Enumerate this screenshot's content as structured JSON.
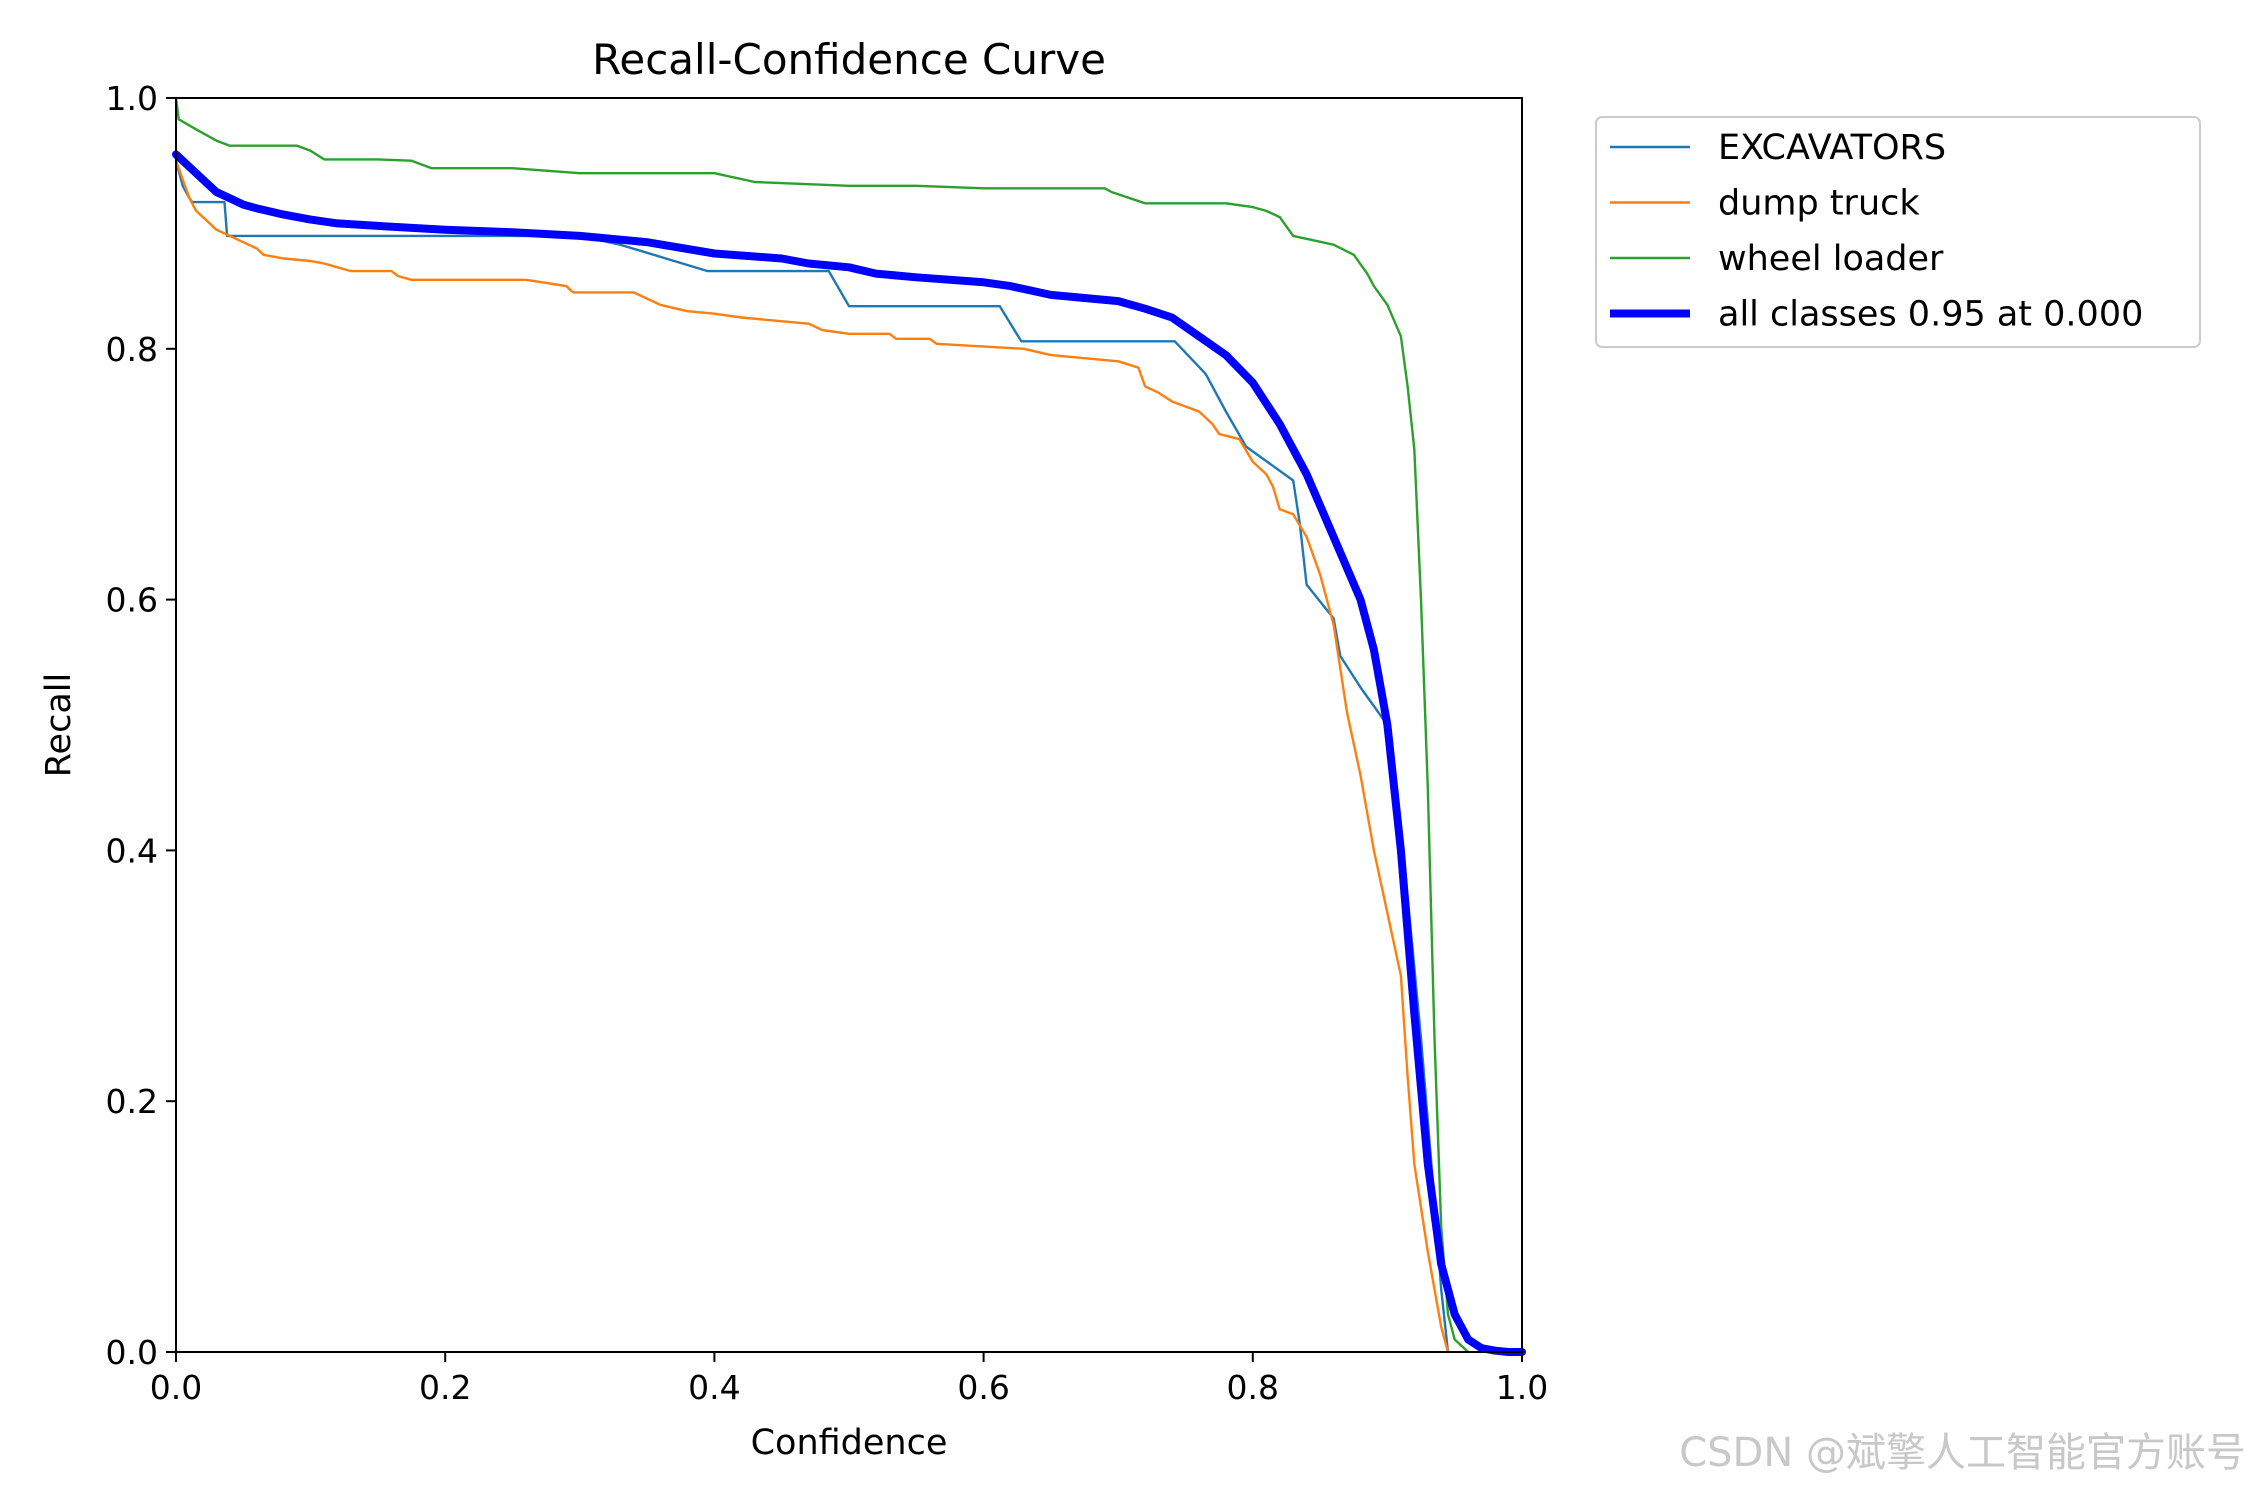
{
  "chart_data": {
    "type": "line",
    "title": "Recall-Confidence Curve",
    "xlabel": "Confidence",
    "ylabel": "Recall",
    "xlim": [
      0.0,
      1.0
    ],
    "ylim": [
      0.0,
      1.0
    ],
    "xticks": [
      "0.0",
      "0.2",
      "0.4",
      "0.6",
      "0.8",
      "1.0"
    ],
    "yticks": [
      "0.0",
      "0.2",
      "0.4",
      "0.6",
      "0.8",
      "1.0"
    ],
    "grid": false,
    "legend_position": "outside-top-right",
    "series": [
      {
        "name": "EXCAVATORS",
        "color": "#1f77b4",
        "x": [
          0.0,
          0.005,
          0.01,
          0.012,
          0.015,
          0.036,
          0.038,
          0.1,
          0.2,
          0.3,
          0.33,
          0.395,
          0.48,
          0.485,
          0.5,
          0.58,
          0.612,
          0.628,
          0.742,
          0.765,
          0.78,
          0.795,
          0.83,
          0.835,
          0.84,
          0.86,
          0.865,
          0.88,
          0.9,
          0.91,
          0.925,
          0.935,
          0.94,
          0.945
        ],
        "y": [
          0.95,
          0.93,
          0.92,
          0.917,
          0.917,
          0.917,
          0.89,
          0.89,
          0.89,
          0.89,
          0.883,
          0.862,
          0.862,
          0.862,
          0.834,
          0.834,
          0.834,
          0.806,
          0.806,
          0.78,
          0.75,
          0.722,
          0.695,
          0.66,
          0.612,
          0.585,
          0.555,
          0.53,
          0.5,
          0.42,
          0.25,
          0.12,
          0.05,
          0.0
        ]
      },
      {
        "name": "dump truck",
        "color": "#ff7f0e",
        "x": [
          0.0,
          0.005,
          0.01,
          0.015,
          0.02,
          0.025,
          0.03,
          0.04,
          0.05,
          0.06,
          0.065,
          0.08,
          0.1,
          0.11,
          0.12,
          0.13,
          0.16,
          0.165,
          0.175,
          0.2,
          0.26,
          0.29,
          0.295,
          0.3,
          0.34,
          0.35,
          0.36,
          0.38,
          0.4,
          0.42,
          0.47,
          0.48,
          0.5,
          0.53,
          0.535,
          0.56,
          0.565,
          0.63,
          0.65,
          0.7,
          0.715,
          0.72,
          0.73,
          0.74,
          0.76,
          0.77,
          0.775,
          0.79,
          0.8,
          0.81,
          0.815,
          0.82,
          0.83,
          0.84,
          0.85,
          0.86,
          0.865,
          0.87,
          0.88,
          0.89,
          0.9,
          0.91,
          0.915,
          0.92,
          0.93,
          0.94,
          0.945
        ],
        "y": [
          0.95,
          0.935,
          0.92,
          0.91,
          0.905,
          0.9,
          0.895,
          0.89,
          0.885,
          0.88,
          0.875,
          0.872,
          0.87,
          0.868,
          0.865,
          0.862,
          0.862,
          0.858,
          0.855,
          0.855,
          0.855,
          0.85,
          0.845,
          0.845,
          0.845,
          0.84,
          0.835,
          0.83,
          0.828,
          0.825,
          0.82,
          0.815,
          0.812,
          0.812,
          0.808,
          0.808,
          0.804,
          0.8,
          0.795,
          0.79,
          0.785,
          0.77,
          0.765,
          0.758,
          0.75,
          0.74,
          0.732,
          0.728,
          0.71,
          0.7,
          0.69,
          0.672,
          0.668,
          0.65,
          0.62,
          0.58,
          0.545,
          0.51,
          0.46,
          0.4,
          0.35,
          0.3,
          0.22,
          0.15,
          0.08,
          0.02,
          0.0
        ]
      },
      {
        "name": "wheel loader",
        "color": "#2ca02c",
        "x": [
          0.0,
          0.002,
          0.015,
          0.03,
          0.04,
          0.09,
          0.1,
          0.11,
          0.15,
          0.175,
          0.19,
          0.25,
          0.3,
          0.4,
          0.43,
          0.5,
          0.55,
          0.6,
          0.65,
          0.69,
          0.695,
          0.72,
          0.78,
          0.8,
          0.81,
          0.82,
          0.83,
          0.86,
          0.875,
          0.885,
          0.89,
          0.9,
          0.91,
          0.915,
          0.92,
          0.925,
          0.93,
          0.935,
          0.94,
          0.945,
          0.95,
          0.96
        ],
        "y": [
          1.0,
          0.983,
          0.975,
          0.966,
          0.962,
          0.962,
          0.958,
          0.951,
          0.951,
          0.95,
          0.944,
          0.944,
          0.94,
          0.94,
          0.933,
          0.93,
          0.93,
          0.928,
          0.928,
          0.928,
          0.925,
          0.916,
          0.916,
          0.913,
          0.91,
          0.905,
          0.89,
          0.883,
          0.875,
          0.86,
          0.85,
          0.835,
          0.81,
          0.77,
          0.72,
          0.6,
          0.45,
          0.25,
          0.1,
          0.03,
          0.01,
          0.0
        ]
      },
      {
        "name": "all classes 0.95 at 0.000",
        "color": "#0000ff",
        "width": "thick",
        "x": [
          0.0,
          0.01,
          0.02,
          0.03,
          0.04,
          0.05,
          0.06,
          0.08,
          0.1,
          0.12,
          0.15,
          0.2,
          0.25,
          0.3,
          0.35,
          0.4,
          0.45,
          0.47,
          0.5,
          0.52,
          0.55,
          0.6,
          0.62,
          0.65,
          0.7,
          0.72,
          0.74,
          0.76,
          0.78,
          0.8,
          0.82,
          0.84,
          0.86,
          0.88,
          0.89,
          0.9,
          0.91,
          0.92,
          0.93,
          0.94,
          0.95,
          0.96,
          0.97,
          0.98,
          0.99,
          1.0
        ],
        "y": [
          0.955,
          0.945,
          0.935,
          0.925,
          0.92,
          0.915,
          0.912,
          0.907,
          0.903,
          0.9,
          0.898,
          0.895,
          0.893,
          0.89,
          0.885,
          0.876,
          0.872,
          0.868,
          0.865,
          0.86,
          0.857,
          0.853,
          0.85,
          0.843,
          0.838,
          0.832,
          0.825,
          0.81,
          0.795,
          0.773,
          0.74,
          0.7,
          0.65,
          0.6,
          0.56,
          0.5,
          0.4,
          0.27,
          0.15,
          0.07,
          0.03,
          0.01,
          0.003,
          0.001,
          0.0,
          0.0
        ]
      }
    ]
  },
  "watermark": "CSDN @斌擎人工智能官方账号"
}
